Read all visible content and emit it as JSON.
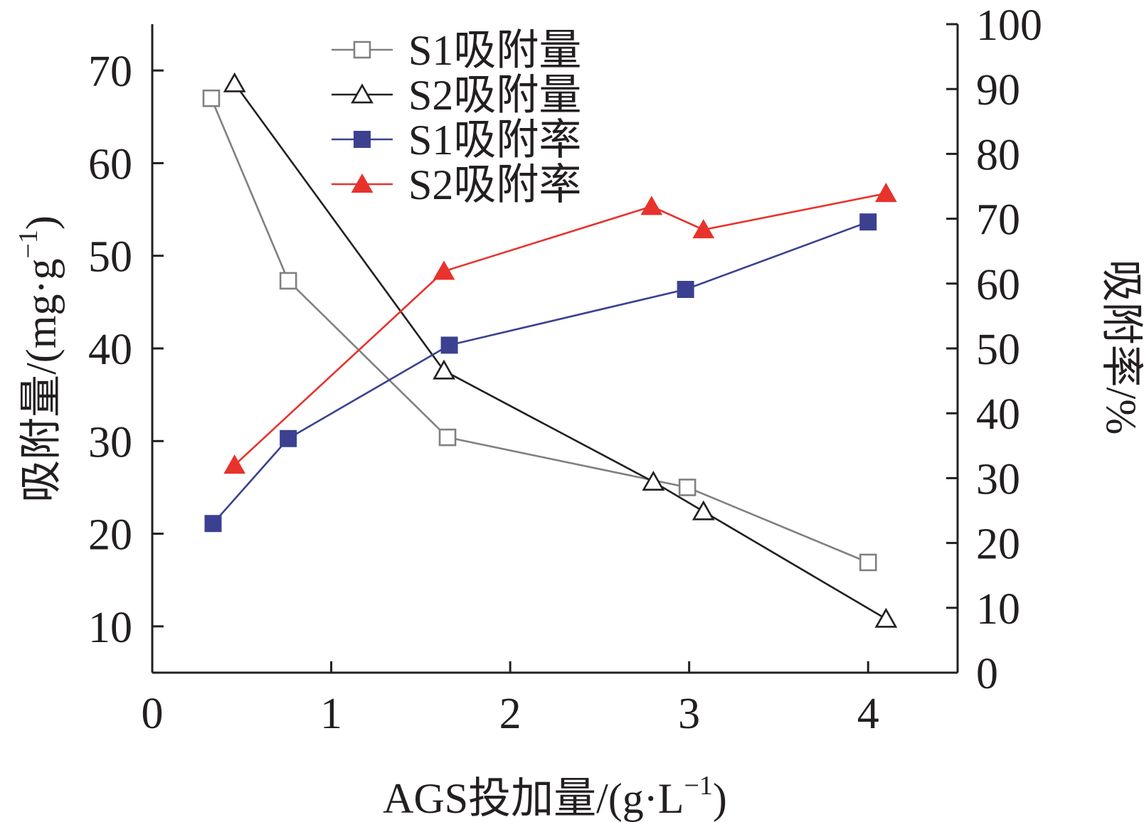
{
  "chart_data": {
    "type": "line",
    "x_axis": {
      "label_prefix": "AGS投加量/(g·L",
      "label_superscript": "−1",
      "label_suffix": ")",
      "min": 0,
      "max": 4.5,
      "ticks": [
        0,
        1,
        2,
        3,
        4
      ]
    },
    "y_left": {
      "label_prefix": "吸附量/(mg·g",
      "label_superscript": "−1",
      "label_suffix": ")",
      "min": 5,
      "max": 75,
      "ticks": [
        10,
        20,
        30,
        40,
        50,
        60,
        70
      ]
    },
    "y_right": {
      "label": "吸附率/%",
      "min": 0,
      "max": 100,
      "ticks": [
        0,
        10,
        20,
        30,
        40,
        50,
        60,
        70,
        80,
        90,
        100
      ]
    },
    "legend_position": "top-center",
    "grid": false,
    "series": [
      {
        "name": "S1吸附量",
        "axis": "left",
        "color": "#808080",
        "marker": "square-open",
        "points": [
          [
            0.33,
            67.0
          ],
          [
            0.76,
            47.3
          ],
          [
            1.65,
            30.4
          ],
          [
            2.99,
            25.0
          ],
          [
            4.0,
            16.9
          ]
        ]
      },
      {
        "name": "S2吸附量",
        "axis": "left",
        "color": "#231f20",
        "marker": "triangle-open",
        "points": [
          [
            0.46,
            68.6
          ],
          [
            1.63,
            37.6
          ],
          [
            2.8,
            25.6
          ],
          [
            3.08,
            22.4
          ],
          [
            4.1,
            10.8
          ]
        ]
      },
      {
        "name": "S1吸附率",
        "axis": "right",
        "color": "#3b4190",
        "marker": "square-filled",
        "points": [
          [
            0.34,
            23.0
          ],
          [
            0.76,
            36.1
          ],
          [
            1.66,
            50.5
          ],
          [
            2.98,
            59.1
          ],
          [
            4.0,
            69.5
          ]
        ]
      },
      {
        "name": "S2吸附率",
        "axis": "right",
        "color": "#e8322c",
        "marker": "triangle-filled",
        "points": [
          [
            0.46,
            32.0
          ],
          [
            1.63,
            61.9
          ],
          [
            2.79,
            71.9
          ],
          [
            3.08,
            68.3
          ],
          [
            4.1,
            73.9
          ]
        ]
      }
    ]
  }
}
